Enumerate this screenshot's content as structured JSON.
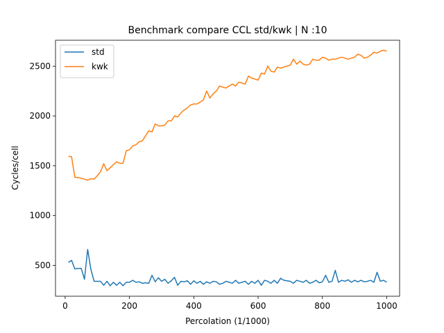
{
  "chart_data": {
    "type": "line",
    "title": "Benchmark compare CCL std/kwk | N :10",
    "xlabel": "Percolation (1/1000)",
    "ylabel": "Cycles/cell",
    "xlim": [
      -30,
      1040
    ],
    "ylim": [
      190,
      2760
    ],
    "xticks": [
      0,
      200,
      400,
      600,
      800,
      1000
    ],
    "yticks": [
      500,
      1000,
      1500,
      2000,
      2500
    ],
    "grid": false,
    "legend": "top-left",
    "x": [
      10,
      20,
      30,
      40,
      50,
      60,
      70,
      80,
      90,
      100,
      110,
      120,
      130,
      140,
      150,
      160,
      170,
      180,
      190,
      200,
      210,
      220,
      230,
      240,
      250,
      260,
      270,
      280,
      290,
      300,
      310,
      320,
      330,
      340,
      350,
      360,
      370,
      380,
      390,
      400,
      410,
      420,
      430,
      440,
      450,
      460,
      470,
      480,
      490,
      500,
      510,
      520,
      530,
      540,
      550,
      560,
      570,
      580,
      590,
      600,
      610,
      620,
      630,
      640,
      650,
      660,
      670,
      680,
      690,
      700,
      710,
      720,
      730,
      740,
      750,
      760,
      770,
      780,
      790,
      800,
      810,
      820,
      830,
      840,
      850,
      860,
      870,
      880,
      890,
      900,
      910,
      920,
      930,
      940,
      950,
      960,
      970,
      980,
      990,
      1000
    ],
    "series": [
      {
        "name": "std",
        "color": "#1f77b4",
        "values": [
          530,
          550,
          465,
          468,
          470,
          360,
          660,
          460,
          340,
          340,
          340,
          300,
          340,
          295,
          330,
          300,
          330,
          295,
          330,
          330,
          350,
          330,
          335,
          320,
          325,
          320,
          400,
          335,
          375,
          340,
          360,
          320,
          345,
          380,
          300,
          340,
          335,
          345,
          310,
          345,
          320,
          340,
          310,
          335,
          320,
          340,
          335,
          310,
          320,
          340,
          330,
          320,
          350,
          320,
          330,
          340,
          310,
          340,
          320,
          350,
          300,
          350,
          340,
          320,
          350,
          320,
          370,
          350,
          345,
          340,
          320,
          350,
          340,
          330,
          350,
          320,
          330,
          350,
          325,
          335,
          400,
          330,
          340,
          450,
          330,
          350,
          340,
          355,
          330,
          350,
          335,
          350,
          335,
          340,
          350,
          330,
          430,
          340,
          350,
          330
        ]
      },
      {
        "name": "kwk",
        "color": "#ff7f0e",
        "values": [
          1595,
          1590,
          1385,
          1380,
          1375,
          1365,
          1355,
          1370,
          1365,
          1400,
          1440,
          1520,
          1450,
          1480,
          1510,
          1540,
          1525,
          1525,
          1650,
          1660,
          1700,
          1710,
          1740,
          1750,
          1800,
          1850,
          1840,
          1920,
          1900,
          1900,
          1910,
          1950,
          1950,
          2000,
          1990,
          2030,
          2060,
          2080,
          2110,
          2120,
          2120,
          2140,
          2160,
          2250,
          2180,
          2220,
          2250,
          2300,
          2290,
          2280,
          2300,
          2320,
          2300,
          2340,
          2330,
          2320,
          2400,
          2380,
          2370,
          2360,
          2430,
          2420,
          2500,
          2450,
          2440,
          2490,
          2480,
          2490,
          2500,
          2510,
          2570,
          2520,
          2550,
          2520,
          2510,
          2520,
          2570,
          2560,
          2560,
          2590,
          2580,
          2560,
          2570,
          2570,
          2580,
          2590,
          2580,
          2570,
          2580,
          2590,
          2620,
          2610,
          2580,
          2590,
          2610,
          2640,
          2630,
          2650,
          2660,
          2650
        ]
      }
    ]
  }
}
